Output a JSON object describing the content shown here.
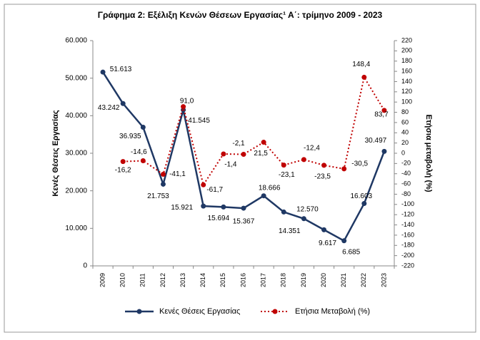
{
  "chart_data": {
    "type": "line",
    "title": "Γράφημα 2: Εξέλιξη Κενών Θέσεων Εργασίας¹ Α΄: τρίμηνο 2009 - 2023",
    "categories": [
      "2009",
      "2010",
      "2011",
      "2012",
      "2013",
      "2014",
      "2015",
      "2016",
      "2017",
      "2018",
      "2019",
      "2020",
      "2021",
      "2022",
      "2023"
    ],
    "ylabel": "Κενές Θέσεις Εργασίας",
    "y2label": "Ετήσια μεταβολή (%)",
    "ylim": [
      0,
      60000
    ],
    "yticks": [
      0,
      {
        "value": 10000,
        "label": "10.000"
      },
      {
        "value": 20000,
        "label": "20.000"
      },
      {
        "value": 30000,
        "label": "30.000"
      },
      {
        "value": 40000,
        "label": "40.000"
      },
      {
        "value": 50000,
        "label": "50.000"
      },
      {
        "value": 60000,
        "label": "60.000"
      }
    ],
    "y2lim": [
      -220,
      220
    ],
    "y2ticks": [
      -220,
      -200,
      -180,
      -160,
      -140,
      -120,
      -100,
      -80,
      -60,
      -40,
      -20,
      0,
      20,
      40,
      60,
      80,
      100,
      120,
      140,
      160,
      180,
      200,
      220
    ],
    "grid": false,
    "legend": "bottom",
    "series": [
      {
        "name": "Κενές Θέσεις Εργασίας",
        "color": "#1f3864",
        "style": "solid",
        "values": [
          51613,
          43242,
          36935,
          21753,
          41545,
          15921,
          15694,
          15367,
          18666,
          14351,
          12570,
          9617,
          6685,
          16603,
          30497
        ],
        "value_labels": [
          "51.613",
          "43.242",
          "36.935",
          "21.753",
          "41.545",
          "15.921",
          "15.694",
          "15.367",
          "18.666",
          "14.351",
          "12.570",
          "9.617",
          "6.685",
          "16.603",
          "30.497"
        ]
      },
      {
        "name": "Ετήσια Μεταβολή (%)",
        "color": "#c00000",
        "style": "dotted",
        "axis": "y2",
        "values": [
          null,
          -16.2,
          -14.6,
          -41.1,
          91.0,
          -61.7,
          -1.4,
          -2.1,
          21.5,
          -23.1,
          -12.4,
          -23.5,
          -30.5,
          148.4,
          83.7
        ],
        "value_labels": [
          null,
          "-16,2",
          "-14,6",
          "-41,1",
          "91,0",
          "-61,7",
          "-1,4",
          "-2,1",
          "21,5",
          "-23,1",
          "-12,4",
          "-23,5",
          "-30,5",
          "148,4",
          "83,7"
        ]
      }
    ]
  }
}
